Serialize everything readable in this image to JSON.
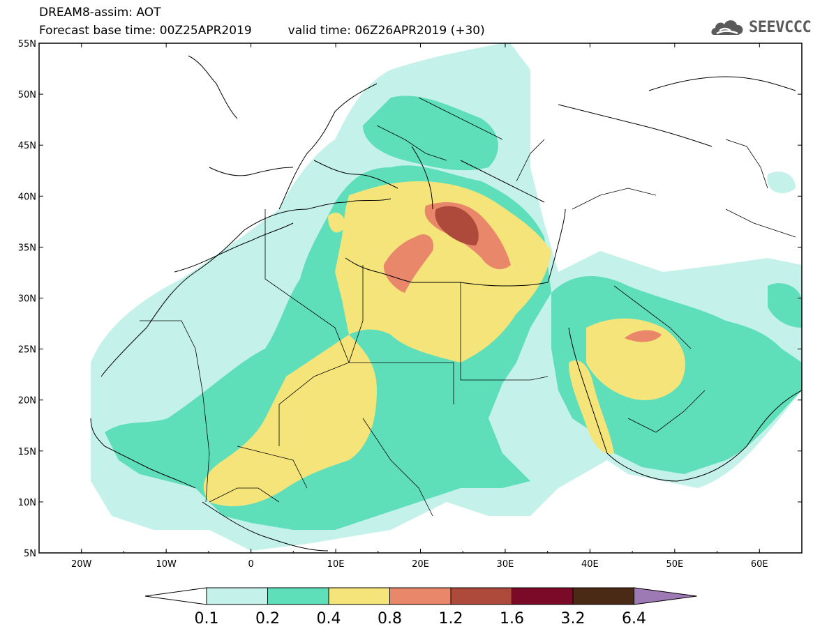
{
  "header": {
    "line1": "DREAM8-assim: AOT",
    "base_time": "Forecast base time: 00Z25APR2019",
    "valid_time": "valid time: 06Z26APR2019 (+30)"
  },
  "logo": {
    "text": "SEEVCCC",
    "icon": "cloud-icon"
  },
  "map": {
    "lat_labels": [
      "55N",
      "50N",
      "45N",
      "40N",
      "35N",
      "30N",
      "25N",
      "20N",
      "15N",
      "10N",
      "5N"
    ],
    "lon_labels": [
      "20W",
      "10W",
      "0",
      "10E",
      "20E",
      "30E",
      "40E",
      "50E",
      "60E"
    ],
    "extent": {
      "lon": [
        -25,
        65
      ],
      "lat": [
        5,
        55
      ]
    }
  },
  "legend": {
    "levels": [
      "0.1",
      "0.2",
      "0.4",
      "0.8",
      "1.2",
      "1.6",
      "3.2",
      "6.4"
    ],
    "colors": {
      "below": "#ffffff",
      "c1": "#c4f2ea",
      "c2": "#5edfba",
      "c3": "#f5e47a",
      "c4": "#e8876a",
      "c5": "#ae4a3c",
      "c6": "#7a0a27",
      "c7": "#4a2a14",
      "above": "#9e7ab5"
    }
  }
}
